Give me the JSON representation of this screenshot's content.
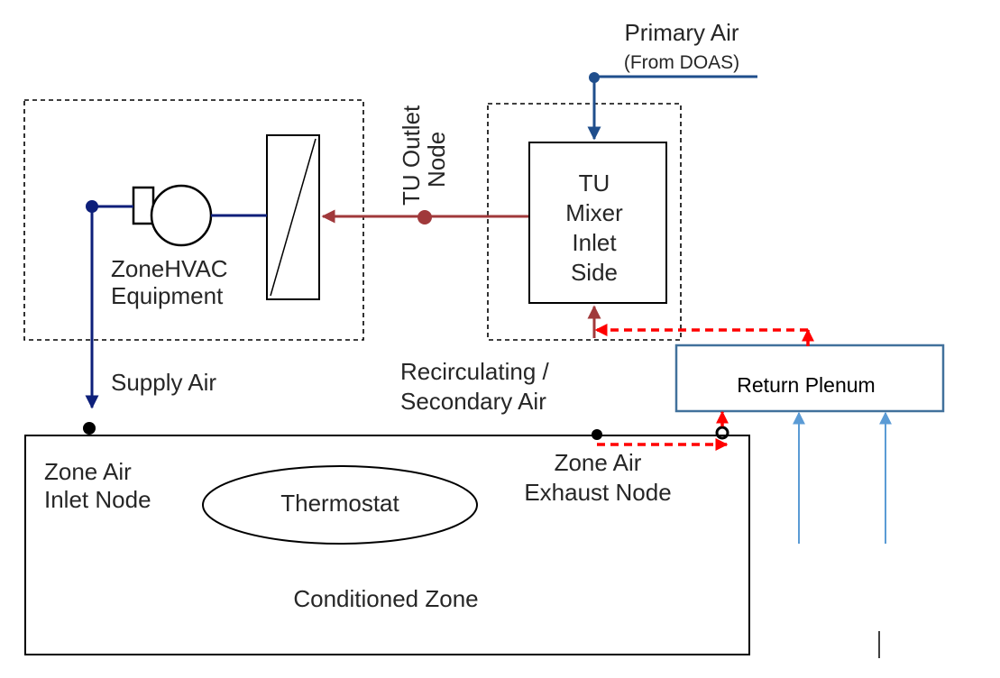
{
  "labels": {
    "primary_air": "Primary Air",
    "from_doas": "(From DOAS)",
    "tu_outlet_line1": "TU Outlet",
    "tu_outlet_line2": "Node",
    "tu_mixer_line1": "TU",
    "tu_mixer_line2": "Mixer",
    "tu_mixer_line3": "Inlet",
    "tu_mixer_line4": "Side",
    "zonehvac_line1": "ZoneHVAC",
    "zonehvac_line2": "Equipment",
    "supply_air": "Supply Air",
    "recirc_line1": "Recirculating /",
    "recirc_line2": "Secondary Air",
    "return_plenum": "Return Plenum",
    "zone_inlet_line1": "Zone Air",
    "zone_inlet_line2": "Inlet Node",
    "zone_exhaust_line1": "Zone Air",
    "zone_exhaust_line2": "Exhaust Node",
    "thermostat": "Thermostat",
    "conditioned_zone": "Conditioned Zone"
  },
  "colors": {
    "primary_air_line": "#1f4e8c",
    "supply_line": "#0d1f7a",
    "recirc_line": "#a0393b",
    "return_flow_dashed": "#ff0000",
    "plenum_border": "#41719c",
    "infiltration_arrows": "#5b9bd5"
  },
  "icons": {
    "fan": "fan-icon",
    "coil": "coil-icon"
  }
}
